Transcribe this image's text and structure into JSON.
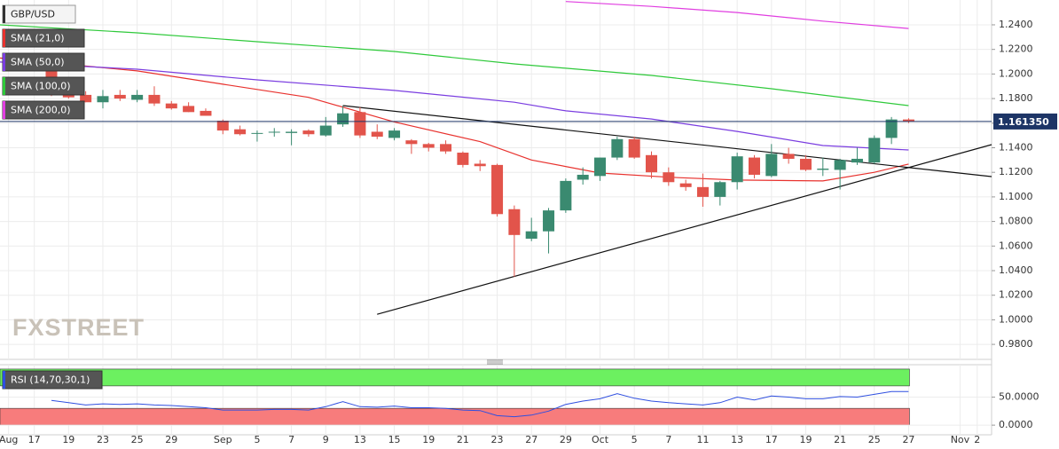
{
  "chart_data": [
    {
      "type": "candlestick",
      "title": "GBP/USD",
      "up_color": "#3a8a70",
      "down_color": "#e2544b",
      "open": [
        1.204,
        1.183,
        1.183,
        1.177,
        1.183,
        1.179,
        1.183,
        1.176,
        1.174,
        1.17,
        1.162,
        1.155,
        1.152,
        1.153,
        1.152,
        1.154,
        1.15,
        1.159,
        1.169,
        1.153,
        1.148,
        1.146,
        1.143,
        1.143,
        1.136,
        1.127,
        1.126,
        1.09,
        1.066,
        1.072,
        1.089,
        1.114,
        1.117,
        1.132,
        1.147,
        1.134,
        1.12,
        1.111,
        1.108,
        1.1,
        1.112,
        1.132,
        1.117,
        1.135,
        1.131,
        1.122,
        1.122,
        1.128,
        1.128,
        1.148,
        1.163
      ],
      "high": [
        1.206,
        1.19,
        1.186,
        1.187,
        1.187,
        1.187,
        1.19,
        1.178,
        1.177,
        1.172,
        1.163,
        1.158,
        1.154,
        1.156,
        1.155,
        1.155,
        1.165,
        1.174,
        1.173,
        1.159,
        1.156,
        1.147,
        1.144,
        1.146,
        1.137,
        1.13,
        1.127,
        1.093,
        1.083,
        1.091,
        1.115,
        1.124,
        1.132,
        1.149,
        1.149,
        1.137,
        1.124,
        1.114,
        1.119,
        1.113,
        1.136,
        1.134,
        1.143,
        1.14,
        1.134,
        1.132,
        1.131,
        1.14,
        1.15,
        1.165,
        1.164
      ],
      "low": [
        1.182,
        1.18,
        1.177,
        1.172,
        1.178,
        1.177,
        1.174,
        1.171,
        1.169,
        1.166,
        1.151,
        1.15,
        1.145,
        1.149,
        1.142,
        1.149,
        1.149,
        1.157,
        1.148,
        1.147,
        1.146,
        1.135,
        1.137,
        1.135,
        1.124,
        1.121,
        1.084,
        1.035,
        1.064,
        1.054,
        1.087,
        1.11,
        1.113,
        1.13,
        1.131,
        1.115,
        1.109,
        1.105,
        1.092,
        1.093,
        1.106,
        1.115,
        1.116,
        1.127,
        1.121,
        1.117,
        1.106,
        1.126,
        1.127,
        1.143,
        1.16
      ],
      "close": [
        1.183,
        1.181,
        1.177,
        1.182,
        1.18,
        1.183,
        1.176,
        1.172,
        1.169,
        1.166,
        1.154,
        1.151,
        1.152,
        1.153,
        1.153,
        1.151,
        1.158,
        1.168,
        1.15,
        1.149,
        1.154,
        1.143,
        1.14,
        1.137,
        1.126,
        1.125,
        1.086,
        1.069,
        1.072,
        1.089,
        1.113,
        1.118,
        1.132,
        1.147,
        1.132,
        1.12,
        1.112,
        1.108,
        1.1,
        1.112,
        1.133,
        1.118,
        1.135,
        1.131,
        1.122,
        1.123,
        1.13,
        1.131,
        1.148,
        1.163,
        1.1614
      ],
      "overlays": [
        {
          "name": "SMA (21,0)",
          "color": "#e8322e",
          "x": [
            -3,
            5,
            10,
            15,
            20,
            25,
            28,
            32,
            36,
            40,
            45,
            48,
            50
          ],
          "values": [
            1.213,
            1.2025,
            1.1917,
            1.181,
            1.161,
            1.145,
            1.13,
            1.1194,
            1.116,
            1.1137,
            1.113,
            1.12,
            1.1267
          ]
        },
        {
          "name": "SMA (50,0)",
          "color": "#7a3de0",
          "x": [
            -3,
            5,
            12,
            20,
            27,
            30,
            35,
            40,
            45,
            50
          ],
          "values": [
            1.2097,
            1.2039,
            1.1952,
            1.1866,
            1.177,
            1.17,
            1.1634,
            1.1533,
            1.1418,
            1.1382
          ]
        },
        {
          "name": "SMA (100,0)",
          "color": "#2ec93a",
          "x": [
            -3,
            5,
            12,
            20,
            27,
            35,
            42,
            50
          ],
          "values": [
            1.24,
            1.2335,
            1.2263,
            1.2183,
            1.2082,
            1.1988,
            1.188,
            1.1743
          ]
        },
        {
          "name": "SMA (200,0)",
          "color": "#e03ee0",
          "x": [
            30,
            35,
            40,
            45,
            50
          ],
          "values": [
            1.259,
            1.255,
            1.25,
            1.243,
            1.237
          ]
        }
      ],
      "trendlines": [
        {
          "color": "#111111",
          "x": [
            17,
            54.84
          ],
          "values": [
            1.1743,
            1.1165
          ]
        },
        {
          "color": "#111111",
          "x": [
            19,
            54.84
          ],
          "values": [
            1.0045,
            1.1425
          ]
        }
      ],
      "last_price": {
        "value": 1.16135,
        "label": "1.161350"
      },
      "xlim": [
        -3,
        54.84
      ],
      "ylim": [
        0.9678,
        1.2602
      ],
      "yticks": [
        {
          "value": 1.24,
          "label": "1.2400"
        },
        {
          "value": 1.22,
          "label": "1.2200"
        },
        {
          "value": 1.2,
          "label": "1.2000"
        },
        {
          "value": 1.18,
          "label": "1.1800"
        },
        {
          "value": 1.16,
          "label": "1.1600"
        },
        {
          "value": 1.14,
          "label": "1.1400"
        },
        {
          "value": 1.12,
          "label": "1.1200"
        },
        {
          "value": 1.1,
          "label": "1.1000"
        },
        {
          "value": 1.08,
          "label": "1.0800"
        },
        {
          "value": 1.06,
          "label": "1.0600"
        },
        {
          "value": 1.04,
          "label": "1.0400"
        },
        {
          "value": 1.02,
          "label": "1.0200"
        },
        {
          "value": 1.0,
          "label": "1.0000"
        },
        {
          "value": 0.98,
          "label": "0.9800"
        }
      ],
      "xticks": [
        {
          "value": -2.5,
          "label": "Aug"
        },
        {
          "value": -1,
          "label": "17"
        },
        {
          "value": 1,
          "label": "19"
        },
        {
          "value": 3,
          "label": "23"
        },
        {
          "value": 5,
          "label": "25"
        },
        {
          "value": 7,
          "label": "29"
        },
        {
          "value": 10,
          "label": "Sep"
        },
        {
          "value": 12,
          "label": "5"
        },
        {
          "value": 14,
          "label": "7"
        },
        {
          "value": 16,
          "label": "9"
        },
        {
          "value": 18,
          "label": "13"
        },
        {
          "value": 20,
          "label": "15"
        },
        {
          "value": 22,
          "label": "19"
        },
        {
          "value": 24,
          "label": "21"
        },
        {
          "value": 26,
          "label": "23"
        },
        {
          "value": 28,
          "label": "27"
        },
        {
          "value": 30,
          "label": "29"
        },
        {
          "value": 32,
          "label": "Oct"
        },
        {
          "value": 34,
          "label": "5"
        },
        {
          "value": 36,
          "label": "7"
        },
        {
          "value": 38,
          "label": "11"
        },
        {
          "value": 40,
          "label": "13"
        },
        {
          "value": 42,
          "label": "17"
        },
        {
          "value": 44,
          "label": "19"
        },
        {
          "value": 46,
          "label": "21"
        },
        {
          "value": 48,
          "label": "25"
        },
        {
          "value": 50,
          "label": "27"
        },
        {
          "value": 53,
          "label": "Nov"
        },
        {
          "value": 54,
          "label": "2"
        }
      ],
      "grid": true,
      "watermark": "FXSTREET"
    },
    {
      "type": "line",
      "title": "RSI (14,70,30,1)",
      "color": "#2f4fe0",
      "values": [
        44,
        40,
        36,
        38,
        37,
        38,
        36,
        35,
        33,
        31,
        27,
        27,
        27,
        28,
        28,
        27,
        33,
        42,
        33,
        32,
        34,
        31,
        31,
        30,
        27,
        26,
        17,
        15,
        18,
        25,
        37,
        43,
        47,
        56,
        48,
        43,
        40,
        38,
        36,
        40,
        50,
        45,
        52,
        50,
        47,
        47,
        51,
        50,
        55,
        60,
        60
      ],
      "ylim": [
        -17.2,
        107.8
      ],
      "yticks": [
        {
          "value": 50,
          "label": "50.0000"
        },
        {
          "value": 0,
          "label": "0.0000"
        }
      ],
      "bands": [
        {
          "from": 70,
          "to": 100,
          "color": "#6cf060"
        },
        {
          "from": 0,
          "to": 30,
          "color": "#f77c7c"
        }
      ]
    }
  ]
}
